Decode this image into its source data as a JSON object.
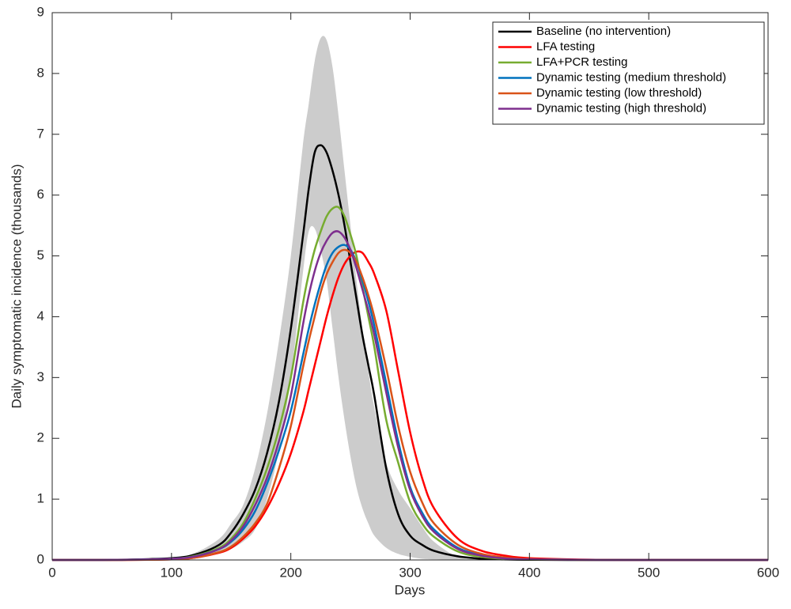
{
  "chart_data": {
    "type": "line",
    "xlabel": "Days",
    "ylabel": "Daily symptomatic incidence (thousands)",
    "xlim": [
      0,
      600
    ],
    "xticks": [
      0,
      100,
      200,
      300,
      400,
      500,
      600
    ],
    "ylim": [
      0,
      9
    ],
    "yticks": [
      0,
      1,
      2,
      3,
      4,
      5,
      6,
      7,
      8,
      9
    ],
    "legend": "northeast",
    "x": [
      0,
      50,
      100,
      120,
      140,
      150,
      160,
      170,
      180,
      190,
      200,
      210,
      215,
      220,
      225,
      230,
      235,
      240,
      245,
      250,
      255,
      260,
      265,
      270,
      280,
      290,
      300,
      310,
      320,
      340,
      360,
      380,
      400,
      450,
      500,
      550,
      600
    ],
    "band": {
      "color": "#cccccc",
      "upper": [
        0,
        0.002,
        0.04,
        0.12,
        0.35,
        0.6,
        0.9,
        1.5,
        2.4,
        3.6,
        5.0,
        6.8,
        7.5,
        8.2,
        8.58,
        8.55,
        8.1,
        7.3,
        6.4,
        5.5,
        4.6,
        3.8,
        3.1,
        2.5,
        1.6,
        1.15,
        0.85,
        0.55,
        0.3,
        0.05,
        0.01,
        0.002,
        0.001,
        0,
        0,
        0,
        0
      ],
      "lower": [
        0,
        0.001,
        0.01,
        0.04,
        0.1,
        0.18,
        0.3,
        0.5,
        1.0,
        1.8,
        3.0,
        4.7,
        5.4,
        5.45,
        5.1,
        4.6,
        3.8,
        3.0,
        2.3,
        1.7,
        1.2,
        0.85,
        0.6,
        0.4,
        0.2,
        0.1,
        0.05,
        0.02,
        0.01,
        0.002,
        0,
        0,
        0,
        0,
        0,
        0,
        0
      ]
    },
    "series": [
      {
        "name": "Baseline (no intervention)",
        "color": "#000000",
        "values": [
          0,
          0.002,
          0.03,
          0.09,
          0.25,
          0.45,
          0.75,
          1.15,
          1.75,
          2.6,
          3.8,
          5.3,
          6.1,
          6.7,
          6.82,
          6.7,
          6.4,
          6.0,
          5.5,
          4.9,
          4.3,
          3.7,
          3.2,
          2.7,
          1.5,
          0.75,
          0.4,
          0.25,
          0.15,
          0.06,
          0.02,
          0.008,
          0.003,
          0,
          0,
          0,
          0
        ]
      },
      {
        "name": "LFA testing",
        "color": "#ff0000",
        "values": [
          0,
          0,
          0.01,
          0.04,
          0.12,
          0.2,
          0.35,
          0.55,
          0.85,
          1.25,
          1.75,
          2.4,
          2.8,
          3.2,
          3.6,
          4.0,
          4.35,
          4.65,
          4.87,
          5.0,
          5.07,
          5.05,
          4.9,
          4.7,
          4.1,
          3.1,
          2.1,
          1.35,
          0.85,
          0.35,
          0.15,
          0.07,
          0.03,
          0.005,
          0,
          0,
          0
        ]
      },
      {
        "name": "LFA+PCR testing",
        "color": "#77ac30",
        "values": [
          0,
          0.001,
          0.02,
          0.07,
          0.2,
          0.35,
          0.6,
          1.0,
          1.5,
          2.15,
          3.0,
          4.2,
          4.7,
          5.1,
          5.4,
          5.65,
          5.78,
          5.8,
          5.65,
          5.35,
          5.0,
          4.5,
          4.0,
          3.5,
          2.3,
          1.6,
          0.95,
          0.6,
          0.38,
          0.14,
          0.05,
          0.02,
          0.008,
          0.001,
          0,
          0,
          0
        ]
      },
      {
        "name": "Dynamic testing (medium threshold)",
        "color": "#0072bd",
        "values": [
          0,
          0.001,
          0.02,
          0.06,
          0.18,
          0.3,
          0.5,
          0.8,
          1.25,
          1.8,
          2.45,
          3.35,
          3.8,
          4.2,
          4.55,
          4.85,
          5.05,
          5.15,
          5.18,
          5.1,
          4.9,
          4.6,
          4.25,
          3.85,
          2.9,
          1.95,
          1.2,
          0.78,
          0.5,
          0.2,
          0.08,
          0.03,
          0.012,
          0.002,
          0,
          0,
          0
        ]
      },
      {
        "name": "Dynamic testing (low threshold)",
        "color": "#d95319",
        "values": [
          0,
          0,
          0.01,
          0.04,
          0.13,
          0.22,
          0.38,
          0.6,
          0.92,
          1.5,
          2.2,
          3.15,
          3.6,
          4.0,
          4.4,
          4.7,
          4.9,
          5.05,
          5.1,
          5.05,
          4.9,
          4.65,
          4.35,
          4.0,
          3.15,
          2.2,
          1.45,
          0.95,
          0.6,
          0.25,
          0.1,
          0.04,
          0.015,
          0.002,
          0,
          0,
          0
        ]
      },
      {
        "name": "Dynamic testing (high threshold)",
        "color": "#7e2f8e",
        "values": [
          0,
          0.001,
          0.02,
          0.06,
          0.18,
          0.32,
          0.55,
          0.9,
          1.35,
          1.95,
          2.7,
          3.85,
          4.35,
          4.75,
          5.05,
          5.25,
          5.38,
          5.4,
          5.3,
          5.1,
          4.8,
          4.45,
          4.1,
          3.7,
          2.75,
          1.85,
          1.15,
          0.73,
          0.46,
          0.18,
          0.07,
          0.025,
          0.01,
          0.001,
          0,
          0,
          0
        ]
      }
    ]
  }
}
